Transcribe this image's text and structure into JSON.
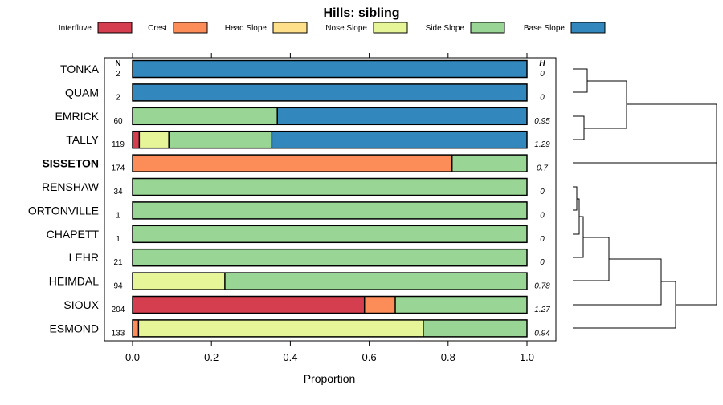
{
  "chart_data": {
    "type": "bar",
    "title": "Hills: sibling",
    "xlabel": "Proportion",
    "ylabel": "",
    "xlim": [
      0,
      1
    ],
    "x_ticks": [
      "0.0",
      "0.2",
      "0.4",
      "0.6",
      "0.8",
      "1.0"
    ],
    "n_header": "N",
    "h_header": "H",
    "highlight": "SISSETON",
    "legend": [
      {
        "name": "Interfluve",
        "color": "#d53e4f"
      },
      {
        "name": "Crest",
        "color": "#fc8d59"
      },
      {
        "name": "Head Slope",
        "color": "#fee08b"
      },
      {
        "name": "Nose Slope",
        "color": "#e6f598"
      },
      {
        "name": "Side Slope",
        "color": "#99d594"
      },
      {
        "name": "Base Slope",
        "color": "#3288bd"
      }
    ],
    "rows": [
      {
        "label": "TONKA",
        "n": "2",
        "h": "0",
        "values": [
          0,
          0,
          0,
          0,
          0,
          1
        ]
      },
      {
        "label": "QUAM",
        "n": "2",
        "h": "0",
        "values": [
          0,
          0,
          0,
          0,
          0,
          1
        ]
      },
      {
        "label": "EMRICK",
        "n": "60",
        "h": "0.95",
        "values": [
          0,
          0,
          0,
          0,
          0.367,
          0.633
        ]
      },
      {
        "label": "TALLY",
        "n": "119",
        "h": "1.29",
        "values": [
          0.017,
          0,
          0,
          0.075,
          0.261,
          0.647
        ]
      },
      {
        "label": "SISSETON",
        "n": "174",
        "h": "0.7",
        "values": [
          0,
          0.81,
          0,
          0,
          0.19,
          0
        ]
      },
      {
        "label": "RENSHAW",
        "n": "34",
        "h": "0",
        "values": [
          0,
          0,
          0,
          0,
          1,
          0
        ]
      },
      {
        "label": "ORTONVILLE",
        "n": "1",
        "h": "0",
        "values": [
          0,
          0,
          0,
          0,
          1,
          0
        ]
      },
      {
        "label": "CHAPETT",
        "n": "1",
        "h": "0",
        "values": [
          0,
          0,
          0,
          0,
          1,
          0
        ]
      },
      {
        "label": "LEHR",
        "n": "21",
        "h": "0",
        "values": [
          0,
          0,
          0,
          0,
          1,
          0
        ]
      },
      {
        "label": "HEIMDAL",
        "n": "94",
        "h": "0.78",
        "values": [
          0,
          0,
          0,
          0.234,
          0.766,
          0
        ]
      },
      {
        "label": "SIOUX",
        "n": "204",
        "h": "1.27",
        "values": [
          0.588,
          0.078,
          0,
          0,
          0.334,
          0
        ]
      },
      {
        "label": "ESMOND",
        "n": "133",
        "h": "0.94",
        "values": [
          0,
          0.015,
          0,
          0.722,
          0.263,
          0
        ]
      }
    ]
  }
}
